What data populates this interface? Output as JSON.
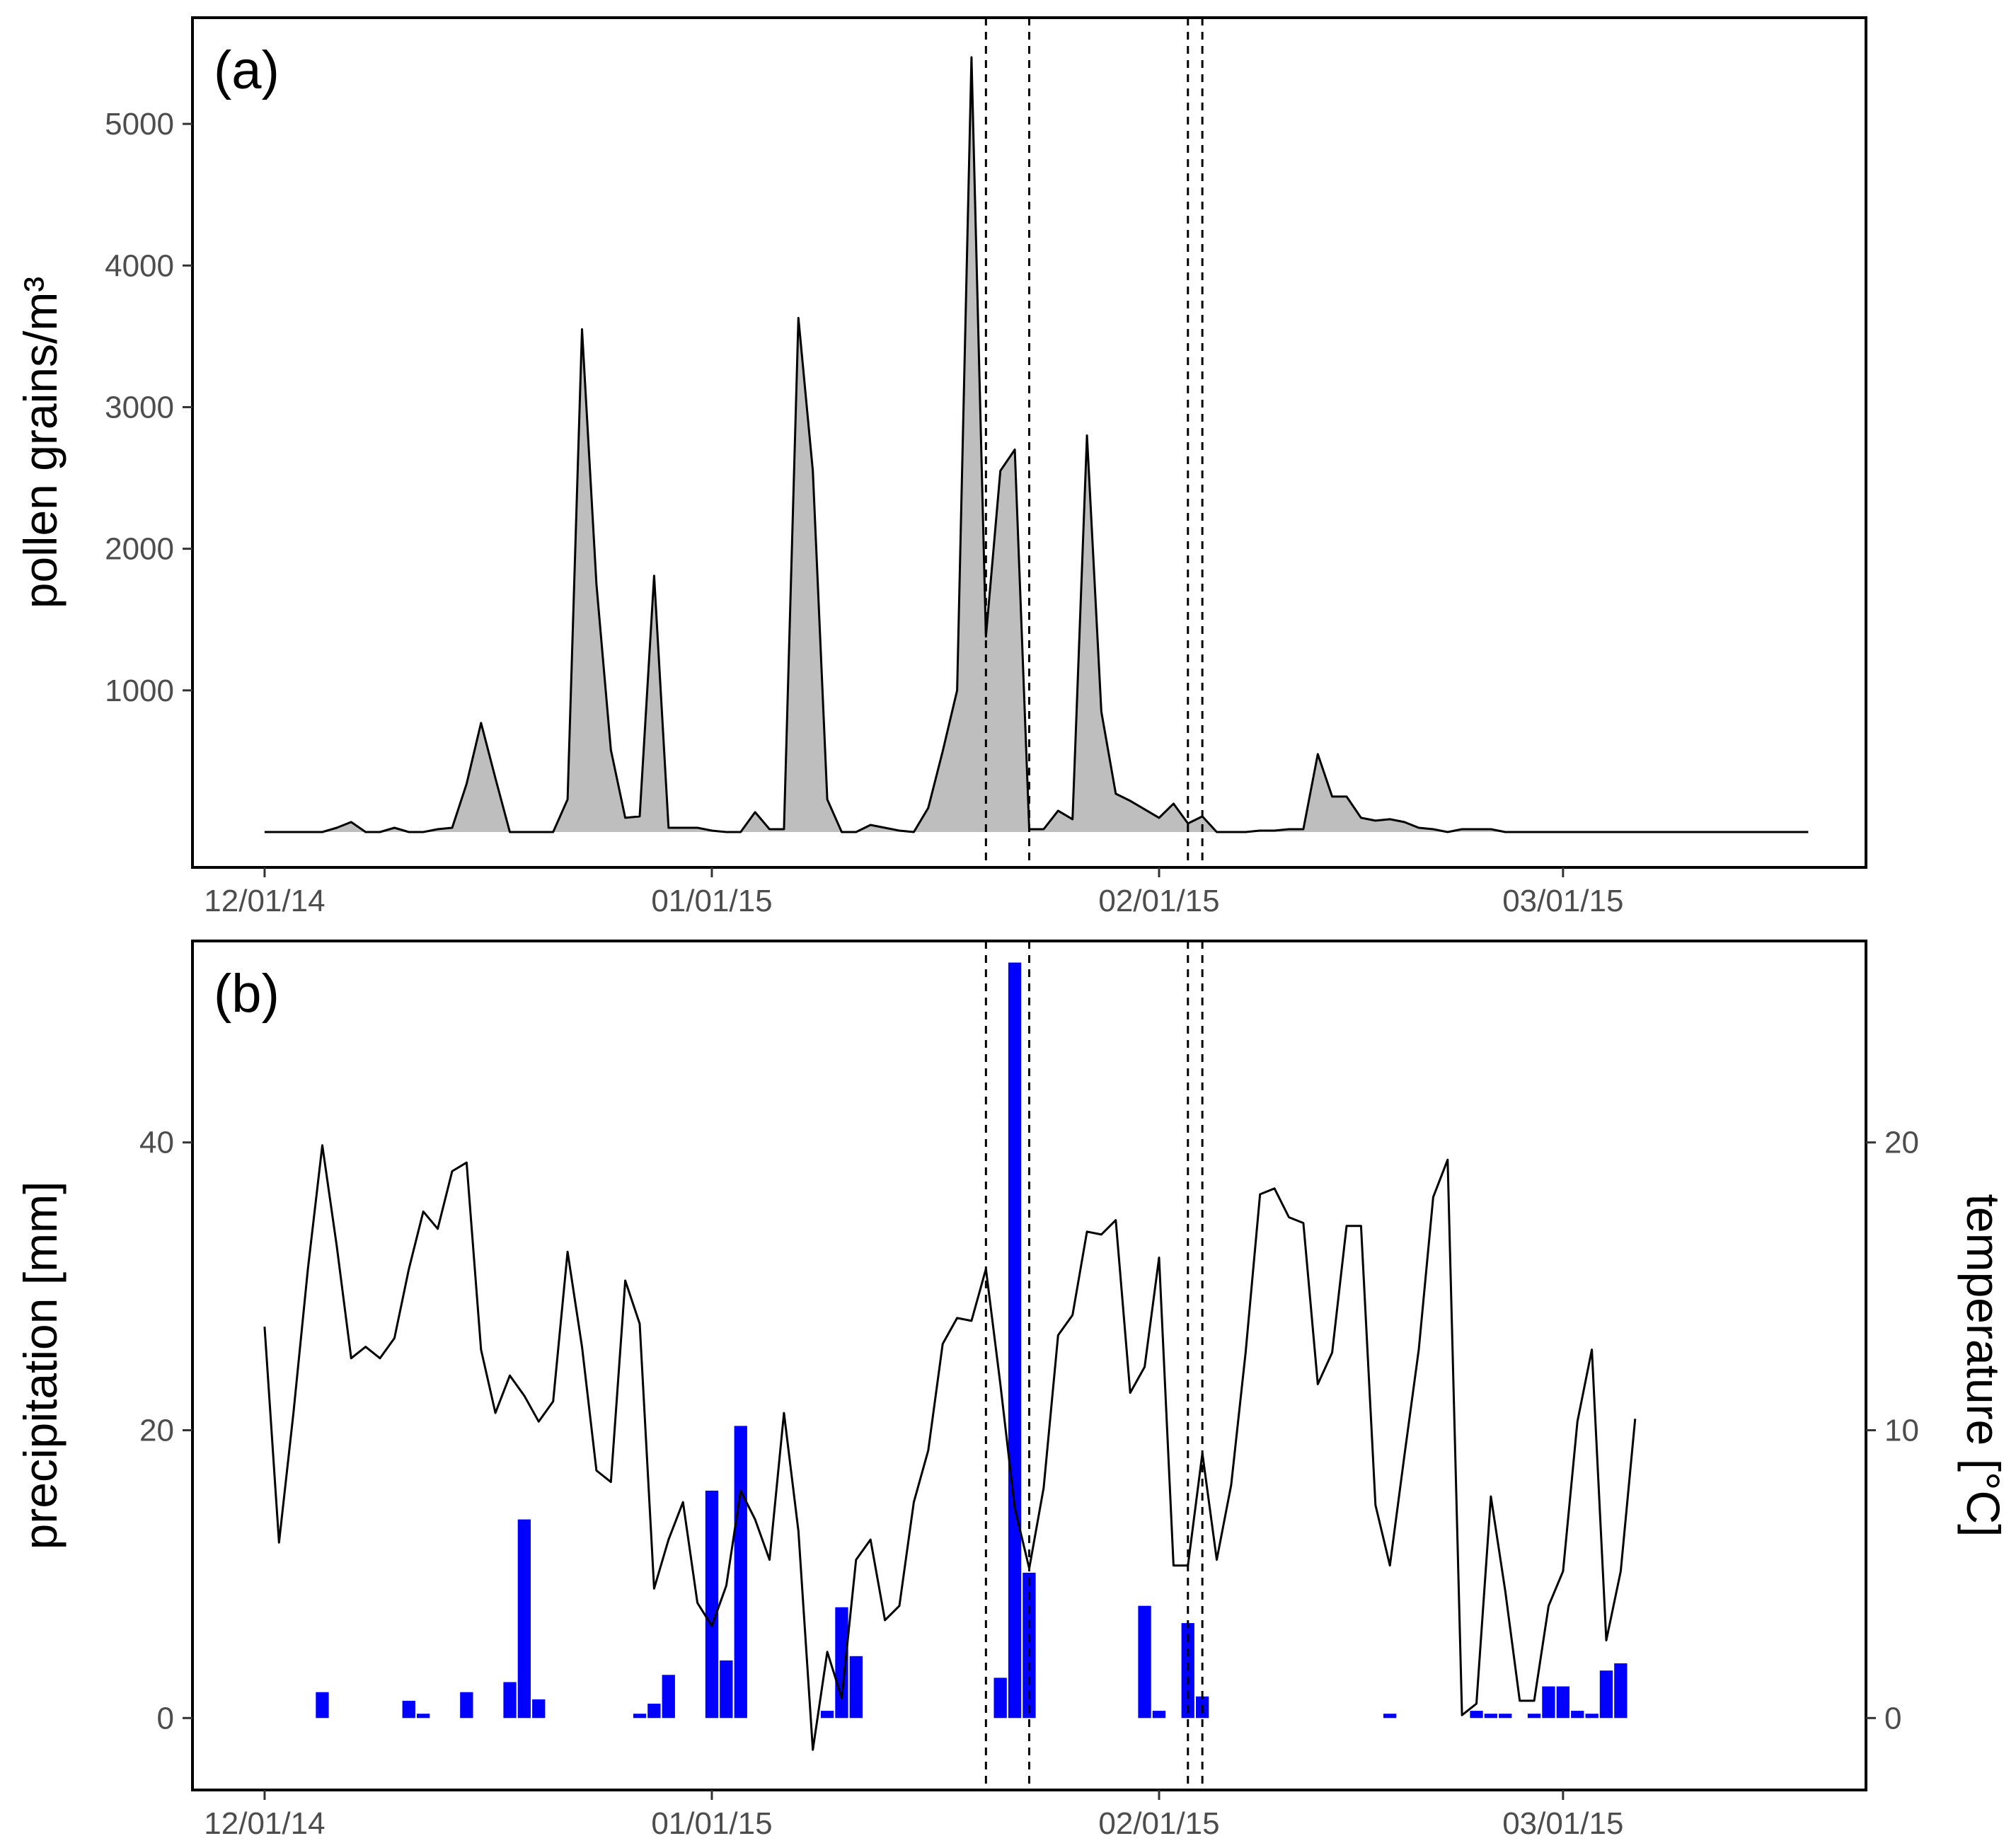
{
  "colors": {
    "pollen_fill": "#bebebe",
    "precip_bar": "#0000ff",
    "line": "#000000",
    "tick_text": "#4d4d4d",
    "frame": "#000000"
  },
  "chart_data": [
    {
      "panel_label": "(a)",
      "type": "area",
      "ylabel": "pollen grains/m³",
      "xlim": [
        "2014-11-26",
        "2015-03-22"
      ],
      "ylim": [
        -250,
        5750
      ],
      "x_ticks": [
        "12/01/14",
        "01/01/15",
        "02/01/15",
        "03/01/15"
      ],
      "x_tick_dates": [
        "2014-12-01",
        "2015-01-01",
        "2015-02-01",
        "2015-03-01"
      ],
      "y_ticks": [
        1000,
        2000,
        3000,
        4000,
        5000
      ],
      "vlines": [
        "2015-01-20",
        "2015-01-23",
        "2015-02-03",
        "2015-02-04"
      ],
      "grid": false,
      "series": [
        {
          "x": [
            "2014-12-01",
            "2014-12-02",
            "2014-12-03",
            "2014-12-04",
            "2014-12-05",
            "2014-12-06",
            "2014-12-07",
            "2014-12-08",
            "2014-12-09",
            "2014-12-10",
            "2014-12-11",
            "2014-12-12",
            "2014-12-13",
            "2014-12-14",
            "2014-12-15",
            "2014-12-16",
            "2014-12-17",
            "2014-12-18",
            "2014-12-19",
            "2014-12-20",
            "2014-12-21",
            "2014-12-22",
            "2014-12-23",
            "2014-12-24",
            "2014-12-25",
            "2014-12-26",
            "2014-12-27",
            "2014-12-28",
            "2014-12-29",
            "2014-12-30",
            "2014-12-31",
            "2015-01-01",
            "2015-01-02",
            "2015-01-03",
            "2015-01-04",
            "2015-01-05",
            "2015-01-06",
            "2015-01-07",
            "2015-01-08",
            "2015-01-09",
            "2015-01-10",
            "2015-01-11",
            "2015-01-12",
            "2015-01-13",
            "2015-01-14",
            "2015-01-15",
            "2015-01-16",
            "2015-01-17",
            "2015-01-18",
            "2015-01-19",
            "2015-01-20",
            "2015-01-21",
            "2015-01-22",
            "2015-01-23",
            "2015-01-24",
            "2015-01-25",
            "2015-01-26",
            "2015-01-27",
            "2015-01-28",
            "2015-01-29",
            "2015-01-30",
            "2015-01-31",
            "2015-02-01",
            "2015-02-02",
            "2015-02-03",
            "2015-02-04",
            "2015-02-05",
            "2015-02-06",
            "2015-02-07",
            "2015-02-08",
            "2015-02-09",
            "2015-02-10",
            "2015-02-11",
            "2015-02-12",
            "2015-02-13",
            "2015-02-14",
            "2015-02-15",
            "2015-02-16",
            "2015-02-17",
            "2015-02-18",
            "2015-02-19",
            "2015-02-20",
            "2015-02-21",
            "2015-02-22",
            "2015-02-23",
            "2015-02-24",
            "2015-02-25",
            "2015-02-26",
            "2015-02-27",
            "2015-02-28",
            "2015-03-01",
            "2015-03-02",
            "2015-03-03",
            "2015-03-04",
            "2015-03-05",
            "2015-03-06",
            "2015-03-07",
            "2015-03-08",
            "2015-03-09",
            "2015-03-10",
            "2015-03-11",
            "2015-03-12",
            "2015-03-13",
            "2015-03-14",
            "2015-03-15",
            "2015-03-16",
            "2015-03-17",
            "2015-03-18"
          ],
          "values": [
            0,
            0,
            0,
            0,
            0,
            30,
            70,
            0,
            0,
            30,
            0,
            0,
            20,
            30,
            340,
            770,
            380,
            0,
            0,
            0,
            0,
            230,
            3550,
            1750,
            580,
            100,
            110,
            1810,
            30,
            30,
            30,
            10,
            0,
            0,
            140,
            20,
            20,
            3630,
            2550,
            230,
            0,
            0,
            50,
            30,
            10,
            0,
            170,
            570,
            1000,
            5470,
            1380,
            2550,
            2700,
            20,
            20,
            150,
            90,
            2800,
            850,
            270,
            220,
            160,
            100,
            200,
            60,
            110,
            0,
            0,
            0,
            10,
            10,
            20,
            20,
            550,
            250,
            250,
            100,
            80,
            90,
            70,
            30,
            20,
            0,
            20,
            20,
            20,
            0,
            0,
            0,
            0,
            0,
            0,
            0,
            0,
            0,
            0,
            0,
            0,
            0,
            0,
            0,
            0,
            0,
            0,
            0,
            0,
            0,
            0
          ]
        }
      ]
    },
    {
      "panel_label": "(b)",
      "type": "bar",
      "ylabel": "precipitation [mm]",
      "ylabel_right": "temperature [°C]",
      "xlim": [
        "2014-11-26",
        "2015-03-22"
      ],
      "ylim": [
        -5,
        54
      ],
      "ylim_right": [
        -2.5,
        27
      ],
      "x_ticks": [
        "12/01/14",
        "01/01/15",
        "02/01/15",
        "03/01/15"
      ],
      "x_tick_dates": [
        "2014-12-01",
        "2015-01-01",
        "2015-02-01",
        "2015-03-01"
      ],
      "y_ticks": [
        0,
        20,
        40
      ],
      "y_ticks_right": [
        0,
        10,
        20
      ],
      "vlines": [
        "2015-01-20",
        "2015-01-23",
        "2015-02-03",
        "2015-02-04"
      ],
      "grid": false,
      "series": [
        {
          "type": "bar",
          "axis": "left",
          "x": [
            "2014-12-05",
            "2014-12-11",
            "2014-12-12",
            "2014-12-15",
            "2014-12-18",
            "2014-12-19",
            "2014-12-20",
            "2014-12-27",
            "2014-12-28",
            "2014-12-29",
            "2015-01-01",
            "2015-01-02",
            "2015-01-03",
            "2015-01-09",
            "2015-01-10",
            "2015-01-11",
            "2015-01-21",
            "2015-01-22",
            "2015-01-23",
            "2015-01-31",
            "2015-02-01",
            "2015-02-03",
            "2015-02-04",
            "2015-02-17",
            "2015-02-23",
            "2015-02-24",
            "2015-02-25",
            "2015-02-27",
            "2015-02-28",
            "2015-03-01",
            "2015-03-02",
            "2015-03-03",
            "2015-03-04",
            "2015-03-05"
          ],
          "values": [
            1.8,
            1.2,
            0.3,
            1.8,
            2.5,
            13.8,
            1.3,
            0.3,
            1.0,
            3.0,
            15.8,
            4.0,
            20.3,
            0.5,
            7.7,
            4.3,
            2.8,
            52.5,
            10.1,
            7.8,
            0.5,
            6.6,
            1.5,
            0.3,
            0.5,
            0.3,
            0.3,
            0.3,
            2.2,
            2.2,
            0.5,
            0.3,
            3.3,
            3.8
          ]
        },
        {
          "type": "line",
          "axis": "right",
          "x": [
            "2014-12-01",
            "2014-12-02",
            "2014-12-03",
            "2014-12-04",
            "2014-12-05",
            "2014-12-06",
            "2014-12-07",
            "2014-12-08",
            "2014-12-09",
            "2014-12-10",
            "2014-12-11",
            "2014-12-12",
            "2014-12-13",
            "2014-12-14",
            "2014-12-15",
            "2014-12-16",
            "2014-12-17",
            "2014-12-18",
            "2014-12-19",
            "2014-12-20",
            "2014-12-21",
            "2014-12-22",
            "2014-12-23",
            "2014-12-24",
            "2014-12-25",
            "2014-12-26",
            "2014-12-27",
            "2014-12-28",
            "2014-12-29",
            "2014-12-30",
            "2014-12-31",
            "2015-01-01",
            "2015-01-02",
            "2015-01-03",
            "2015-01-04",
            "2015-01-05",
            "2015-01-06",
            "2015-01-07",
            "2015-01-08",
            "2015-01-09",
            "2015-01-10",
            "2015-01-11",
            "2015-01-12",
            "2015-01-13",
            "2015-01-14",
            "2015-01-15",
            "2015-01-16",
            "2015-01-17",
            "2015-01-18",
            "2015-01-19",
            "2015-01-20",
            "2015-01-21",
            "2015-01-22",
            "2015-01-23",
            "2015-01-24",
            "2015-01-25",
            "2015-01-26",
            "2015-01-27",
            "2015-01-28",
            "2015-01-29",
            "2015-01-30",
            "2015-01-31",
            "2015-02-01",
            "2015-02-02",
            "2015-02-03",
            "2015-02-04",
            "2015-02-05",
            "2015-02-06",
            "2015-02-07",
            "2015-02-08",
            "2015-02-09",
            "2015-02-10",
            "2015-02-11",
            "2015-02-12",
            "2015-02-13",
            "2015-02-14",
            "2015-02-15",
            "2015-02-16",
            "2015-02-17",
            "2015-02-18",
            "2015-02-19",
            "2015-02-20",
            "2015-02-21",
            "2015-02-22",
            "2015-02-23",
            "2015-02-24",
            "2015-02-25",
            "2015-02-26",
            "2015-02-27",
            "2015-02-28",
            "2015-03-01",
            "2015-03-02",
            "2015-03-03",
            "2015-03-04",
            "2015-03-05",
            "2015-03-06"
          ],
          "values": [
            13.6,
            6.1,
            10.6,
            15.6,
            19.9,
            16.4,
            12.5,
            12.9,
            12.5,
            13.2,
            15.6,
            17.6,
            17.0,
            19.0,
            19.3,
            12.8,
            10.6,
            11.9,
            11.2,
            10.3,
            11.0,
            16.2,
            12.9,
            8.6,
            8.2,
            15.2,
            13.7,
            4.5,
            6.2,
            7.5,
            4.0,
            3.2,
            4.6,
            7.9,
            6.9,
            5.5,
            10.6,
            6.5,
            -1.1,
            2.3,
            0.7,
            5.5,
            6.2,
            3.4,
            3.9,
            7.5,
            9.3,
            13.0,
            13.9,
            13.8,
            15.6,
            11.6,
            7.3,
            5.2,
            8.0,
            13.3,
            14.0,
            16.9,
            16.8,
            17.3,
            11.3,
            12.2,
            16.0,
            5.3,
            5.3,
            9.2,
            5.5,
            8.1,
            12.7,
            18.2,
            18.4,
            17.4,
            17.2,
            11.6,
            12.7,
            17.1,
            17.1,
            7.4,
            5.3,
            9.1,
            12.8,
            18.1,
            19.4,
            0.1,
            0.5,
            7.7,
            4.4,
            0.6,
            0.6,
            3.9,
            5.1,
            10.3,
            12.8,
            2.7,
            5.1,
            10.4
          ]
        }
      ]
    }
  ]
}
